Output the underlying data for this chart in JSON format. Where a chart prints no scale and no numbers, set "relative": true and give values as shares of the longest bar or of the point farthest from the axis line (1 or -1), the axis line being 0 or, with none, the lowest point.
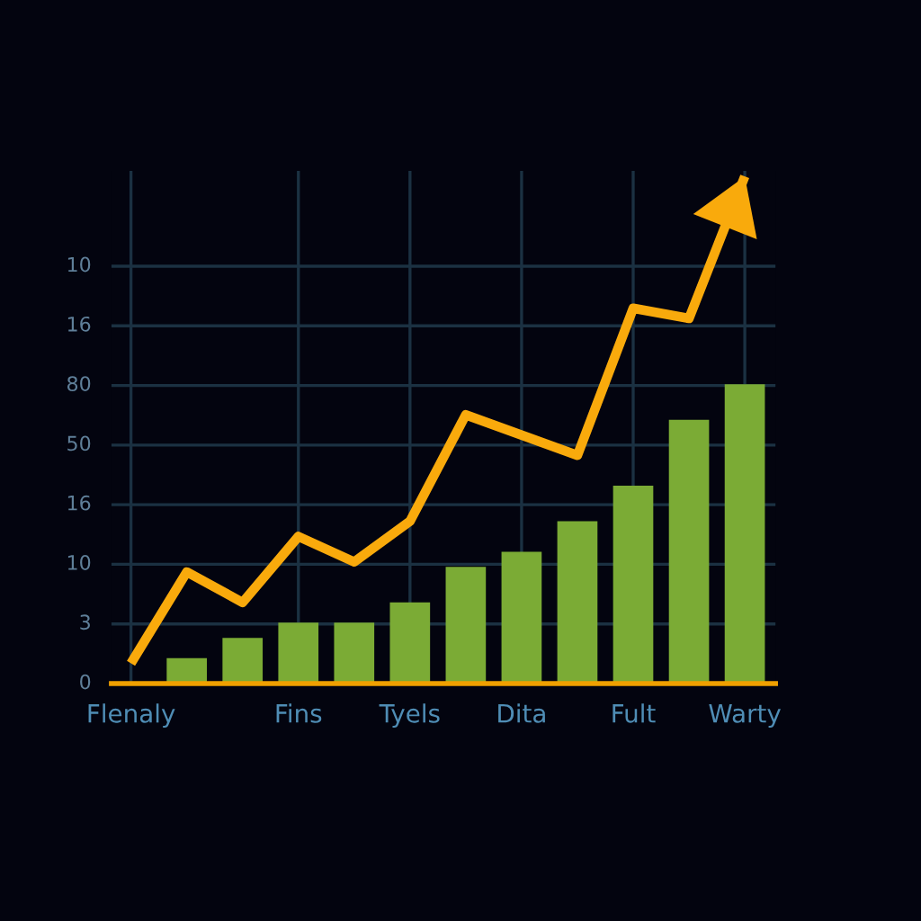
{
  "chart_data": {
    "type": "bar",
    "relative": true,
    "grid": true,
    "categories": [
      "Flenaly",
      null,
      null,
      "Fins",
      null,
      "Tyels",
      null,
      "Dita",
      null,
      "Fult",
      null,
      "Warty"
    ],
    "annotations": [
      "10",
      "16",
      "80",
      "50",
      "16",
      "10",
      "3",
      "0"
    ],
    "series": [
      {
        "color": "#7bab35",
        "values": [
          null,
          0.05,
          0.09,
          0.12,
          0.12,
          0.16,
          0.23,
          0.26,
          0.32,
          0.39,
          0.52,
          0.59
        ]
      },
      {
        "type": "line",
        "color": "#f9aa0c",
        "values": [
          0.04,
          0.22,
          0.16,
          0.29,
          0.24,
          0.32,
          0.53,
          0.49,
          0.45,
          0.74,
          0.72,
          1.0
        ]
      }
    ]
  }
}
